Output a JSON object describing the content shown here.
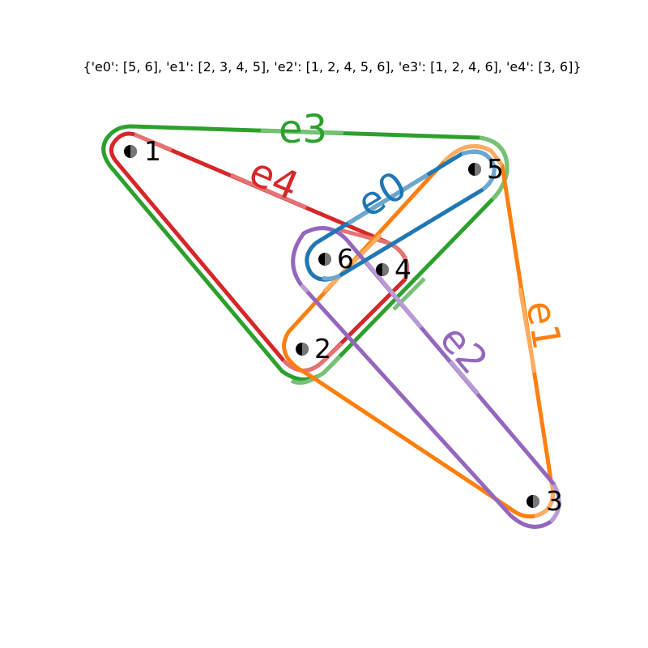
{
  "title": "{'e0': [5, 6], 'e1': [2, 3, 4, 5], 'e2': [1, 2, 4, 5, 6], 'e3': [1, 2, 4, 6], 'e4': [3, 6]}",
  "nodes": [
    {
      "id": "1",
      "label": "1"
    },
    {
      "id": "2",
      "label": "2"
    },
    {
      "id": "3",
      "label": "3"
    },
    {
      "id": "4",
      "label": "4"
    },
    {
      "id": "5",
      "label": "5"
    },
    {
      "id": "6",
      "label": "6"
    }
  ],
  "edges": [
    {
      "id": "e0",
      "label": "e0",
      "members": [
        "5",
        "6"
      ],
      "color": "#1f77b4"
    },
    {
      "id": "e1",
      "label": "e1",
      "members": [
        "2",
        "3",
        "4",
        "5"
      ],
      "color": "#ff7f0e"
    },
    {
      "id": "e2",
      "label": "e2",
      "members": [
        "1",
        "2",
        "4",
        "5",
        "6"
      ],
      "color": "#2ca02c"
    },
    {
      "id": "e3",
      "label": "e3",
      "members": [
        "1",
        "2",
        "4",
        "6"
      ],
      "color": "#d62728"
    },
    {
      "id": "e4",
      "label": "e4",
      "members": [
        "3",
        "6"
      ],
      "color": "#9467bd"
    }
  ]
}
